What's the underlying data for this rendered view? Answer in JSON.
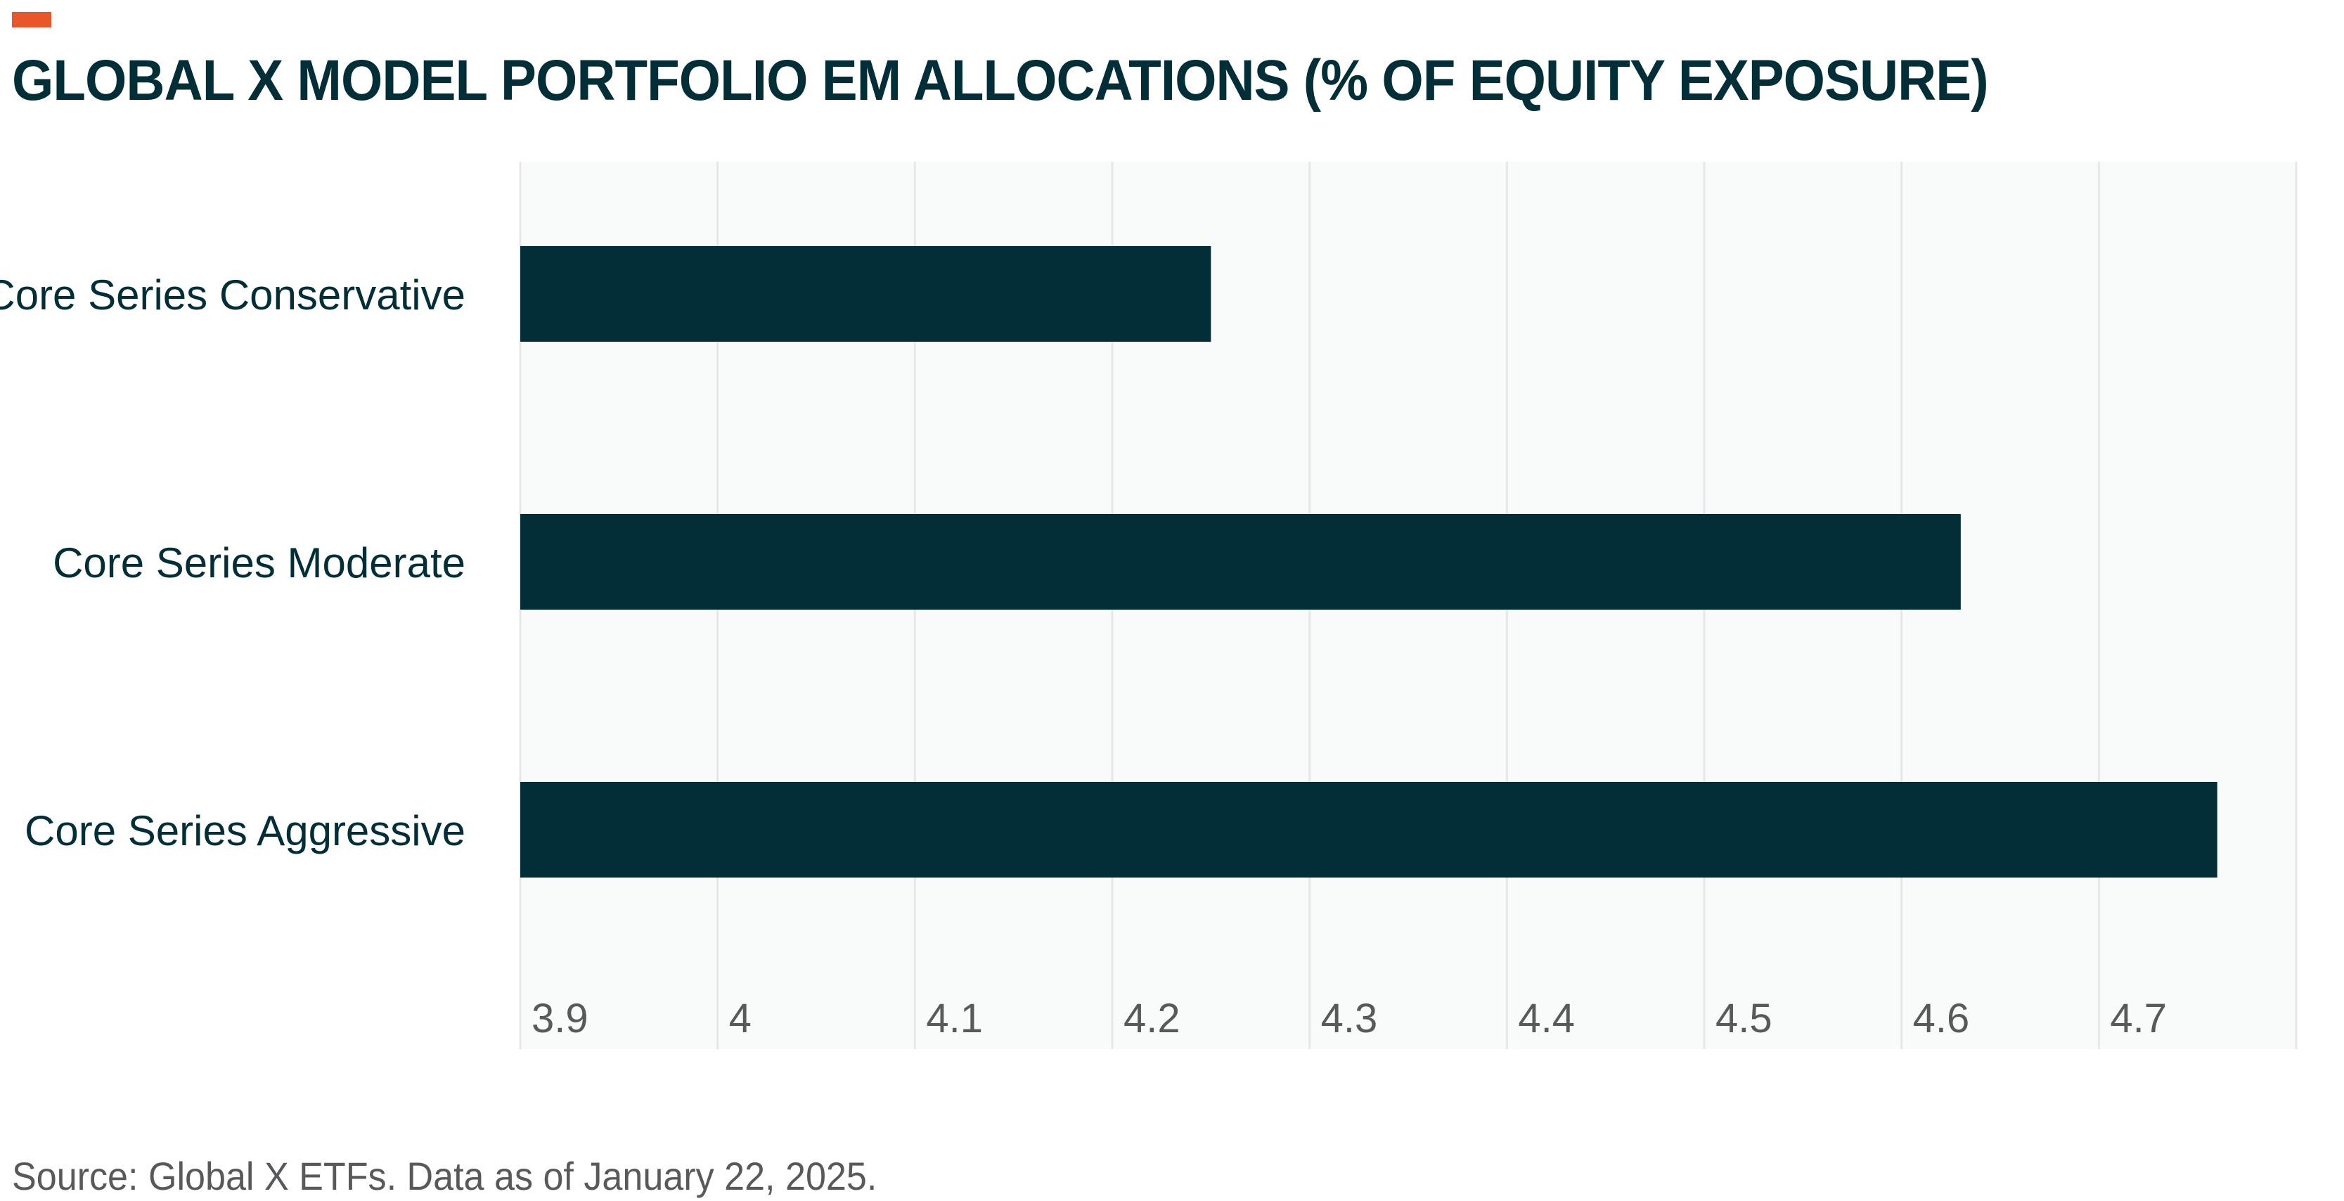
{
  "title": "GLOBAL X MODEL PORTFOLIO EM ALLOCATIONS (% OF EQUITY EXPOSURE)",
  "source": "Source: Global X ETFs. Data as of January 22, 2025.",
  "colors": {
    "accent": "#e8562a",
    "bar": "#022e37",
    "title": "#022e37",
    "plot_background": "#f9fafa",
    "gridline": "#e6e8e8",
    "tick_label": "#58595b",
    "category_label": "#022e37"
  },
  "chart_data": {
    "type": "bar",
    "orientation": "horizontal",
    "title": "GLOBAL X MODEL PORTFOLIO EM ALLOCATIONS (% OF EQUITY EXPOSURE)",
    "categories": [
      "Core Series Conservative",
      "Core Series Moderate",
      "Core Series Aggressive"
    ],
    "values": [
      4.25,
      4.63,
      4.76
    ],
    "xlim": [
      3.9,
      4.8
    ],
    "xticks": [
      "3.9",
      "4",
      "4.1",
      "4.2",
      "4.3",
      "4.4",
      "4.5",
      "4.6",
      "4.7"
    ],
    "xlabel": "",
    "ylabel": "",
    "grid": "vertical",
    "legend": "none"
  }
}
